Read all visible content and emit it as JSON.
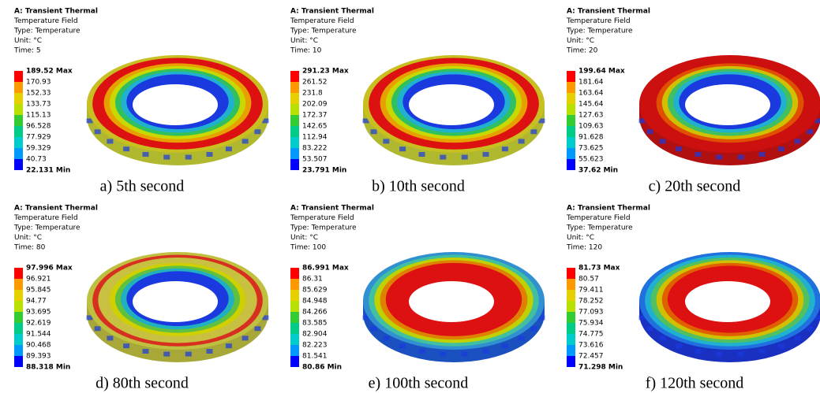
{
  "panels": [
    {
      "header": [
        "A: Transient Thermal",
        "Temperature Field",
        "Type: Temperature",
        "Unit: °C",
        "Time: 5"
      ],
      "legend": [
        "189.52 Max",
        "170.93",
        "152.33",
        "133.73",
        "115.13",
        "96.528",
        "77.929",
        "59.329",
        "40.73",
        "22.131 Min"
      ],
      "caption": "a) 5th second"
    },
    {
      "header": [
        "A: Transient Thermal",
        "Temperature Field",
        "Type: Temperature",
        "Unit: °C",
        "Time: 10"
      ],
      "legend": [
        "291.23 Max",
        "261.52",
        "231.8",
        "202.09",
        "172.37",
        "142.65",
        "112.94",
        "83.222",
        "53.507",
        "23.791 Min"
      ],
      "caption": "b) 10th second"
    },
    {
      "header": [
        "A: Transient Thermal",
        "Temperature Field",
        "Type: Temperature",
        "Unit: °C",
        "Time: 20"
      ],
      "legend": [
        "199.64 Max",
        "181.64",
        "163.64",
        "145.64",
        "127.63",
        "109.63",
        "91.628",
        "73.625",
        "55.623",
        "37.62 Min"
      ],
      "caption": "c) 20th second"
    },
    {
      "header": [
        "A: Transient Thermal",
        "Temperature Field",
        "Type: Temperature",
        "Unit: °C",
        "Time: 80"
      ],
      "legend": [
        "97.996 Max",
        "96.921",
        "95.845",
        "94.77",
        "93.695",
        "92.619",
        "91.544",
        "90.468",
        "89.393",
        "88.318 Min"
      ],
      "caption": "d) 80th second"
    },
    {
      "header": [
        "A: Transient Thermal",
        "Temperature Field",
        "Type: Temperature",
        "Unit: °C",
        "Time: 100"
      ],
      "legend": [
        "86.991 Max",
        "86.31",
        "85.629",
        "84.948",
        "84.266",
        "83.585",
        "82.904",
        "82.223",
        "81.541",
        "80.86 Min"
      ],
      "caption": "e) 100th second"
    },
    {
      "header": [
        "A: Transient Thermal",
        "Temperature Field",
        "Type: Temperature",
        "Unit: °C",
        "Time: 120"
      ],
      "legend": [
        "81.73 Max",
        "80.57",
        "79.411",
        "78.252",
        "77.093",
        "75.934",
        "74.775",
        "73.616",
        "72.457",
        "71.298 Min"
      ],
      "caption": "f) 120th second"
    }
  ]
}
